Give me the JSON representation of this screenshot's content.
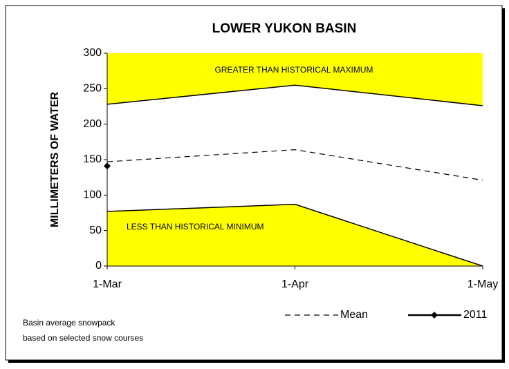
{
  "chart_data": {
    "type": "line",
    "title": "LOWER YUKON BASIN",
    "y_label": "MILLIMETERS OF WATER",
    "categories": [
      "1-Mar",
      "1-Apr",
      "1-May"
    ],
    "band_upper": [
      228,
      255,
      226
    ],
    "band_lower": [
      77,
      87,
      0
    ],
    "band_color": "#ffff00",
    "upper_annotation": "GREATER THAN HISTORICAL MAXIMUM",
    "lower_annotation": "LESS THAN HISTORICAL MINIMUM",
    "series": [
      {
        "name": "Mean",
        "color": "#000000",
        "values": [
          147,
          164,
          121
        ]
      },
      {
        "name": "2011",
        "color": "#000000",
        "values": [
          141,
          null,
          null
        ]
      }
    ],
    "ylim": [
      0,
      300
    ],
    "yticks": [
      0,
      50,
      100,
      150,
      200,
      250,
      300
    ],
    "notes": [
      "Basin average snowpack",
      "based on selected snow courses"
    ]
  }
}
